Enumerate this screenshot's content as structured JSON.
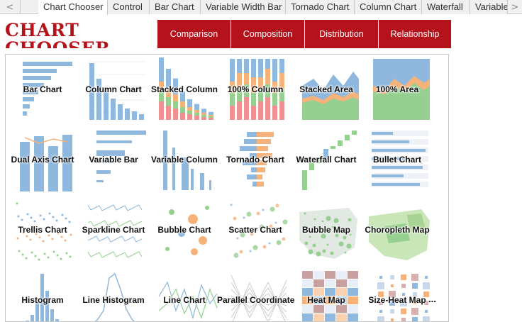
{
  "tabs": [
    "Chart Chooser",
    "Control",
    "Bar Chart",
    "Variable Width Bar",
    "Tornado Chart",
    "Column Chart",
    "Waterfall",
    "Variable"
  ],
  "nav": {
    "prev": "<",
    "next": ">"
  },
  "title": "CHART CHOOSER",
  "categories": [
    "Comparison",
    "Composition",
    "Distribution",
    "Relationship"
  ],
  "charts": [
    "Bar Chart",
    "Column Chart",
    "Stacked Column",
    "100% Column",
    "Stacked Area",
    "100% Area",
    "Dual Axis Chart",
    "Variable Bar",
    "Variable Column",
    "Tornado Chart",
    "Waterfall Chart",
    "Bullet Chart",
    "Trellis Chart",
    "Sparkline Chart",
    "Bubble Chart",
    "Scatter Chart",
    "Bubble Map",
    "Choropleth Map",
    "Histogram",
    "Line Histogram",
    "Line Chart",
    "Parallel Coordinate",
    "Heat Map",
    "Size-Heat Map"
  ],
  "more": "…",
  "colors": {
    "accent": "#b5121b",
    "blue": "#8fb8de",
    "orange": "#f7b27a",
    "green": "#96d090",
    "red": "#f09090"
  }
}
